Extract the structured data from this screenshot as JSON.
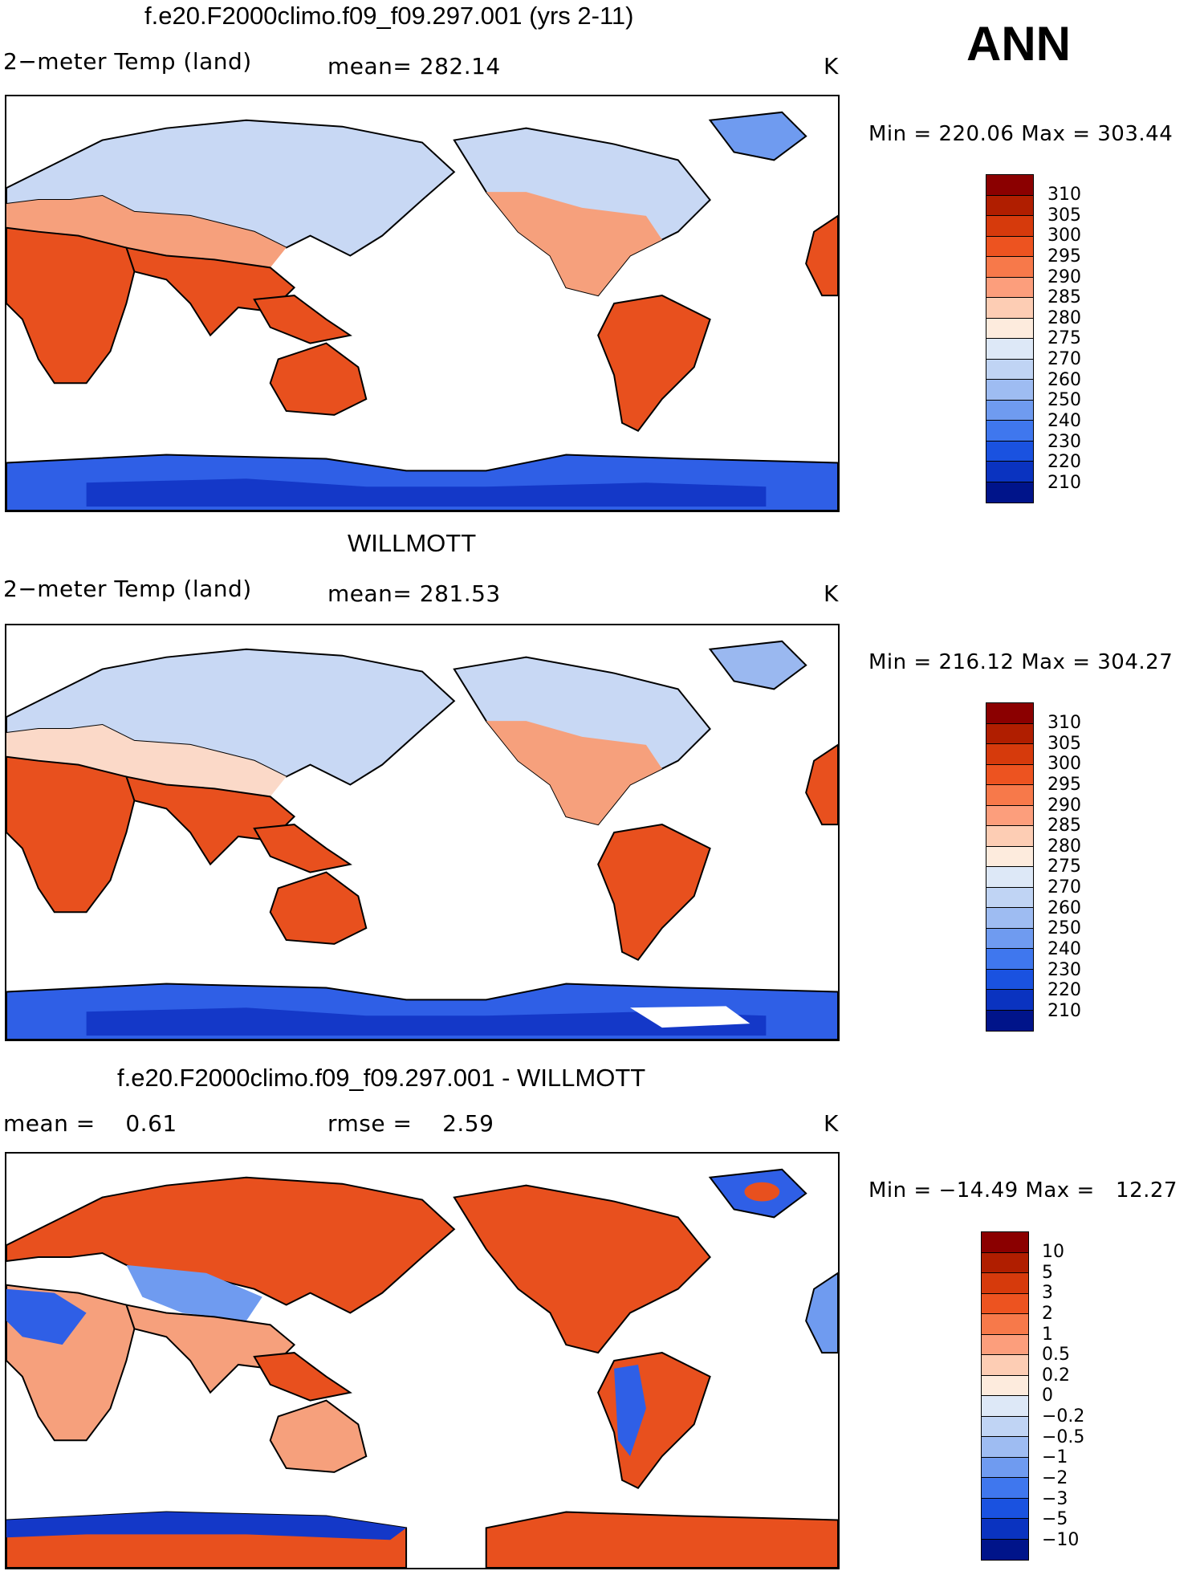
{
  "season": "ANN",
  "units": "K",
  "panels": [
    {
      "title": "f.e20.F2000climo.f09_f09.297.001 (yrs 2-11)",
      "variable": "2−meter Temp (land)",
      "stat_left": "mean= 282.14",
      "minmax": "Min = 220.06 Max = 303.44",
      "colorbar": {
        "labels": [
          "310",
          "305",
          "300",
          "295",
          "290",
          "285",
          "280",
          "275",
          "270",
          "260",
          "250",
          "240",
          "230",
          "220",
          "210"
        ],
        "colors": [
          "#8b0000",
          "#b01e00",
          "#d63a0c",
          "#ed5320",
          "#f7794a",
          "#fc9e7c",
          "#fdcdb4",
          "#fdebdd",
          "#dde8f7",
          "#c0d4f4",
          "#9ebcf2",
          "#6f9bf0",
          "#3f77ee",
          "#1a52e0",
          "#0a33c0",
          "#00148a"
        ]
      }
    },
    {
      "title": "WILLMOTT",
      "variable": "2−meter Temp (land)",
      "stat_left": "mean= 281.53",
      "minmax": "Min = 216.12 Max = 304.27",
      "colorbar": {
        "labels": [
          "310",
          "305",
          "300",
          "295",
          "290",
          "285",
          "280",
          "275",
          "270",
          "260",
          "250",
          "240",
          "230",
          "220",
          "210"
        ],
        "colors": [
          "#8b0000",
          "#b01e00",
          "#d63a0c",
          "#ed5320",
          "#f7794a",
          "#fc9e7c",
          "#fdcdb4",
          "#fdebdd",
          "#dde8f7",
          "#c0d4f4",
          "#9ebcf2",
          "#6f9bf0",
          "#3f77ee",
          "#1a52e0",
          "#0a33c0",
          "#00148a"
        ]
      }
    },
    {
      "title": "f.e20.F2000climo.f09_f09.297.001 - WILLMOTT",
      "stat_left": "mean =    0.61",
      "stat_mid": "rmse =    2.59",
      "minmax": "Min = −14.49 Max =   12.27",
      "colorbar": {
        "labels": [
          "10",
          "5",
          "3",
          "2",
          "1",
          "0.5",
          "0.2",
          "0",
          "−0.2",
          "−0.5",
          "−1",
          "−2",
          "−3",
          "−5",
          "−10"
        ],
        "colors": [
          "#8b0000",
          "#b01e00",
          "#d63a0c",
          "#ed5320",
          "#f7794a",
          "#fc9e7c",
          "#fdcdb4",
          "#fdebdd",
          "#dde8f7",
          "#c0d4f4",
          "#9ebcf2",
          "#6f9bf0",
          "#3f77ee",
          "#1a52e0",
          "#0a33c0",
          "#00148a"
        ]
      }
    }
  ],
  "map_colors": {
    "ocean": "#ffffff",
    "coast": "#000000",
    "hot": "#e8501e",
    "warm": "#f6a07c",
    "mild": "#fbd9c8",
    "cool": "#c8d8f4",
    "cold": "#9ab8f0",
    "ice": "#2f5fe6",
    "deep_ice": "#1438c8"
  }
}
